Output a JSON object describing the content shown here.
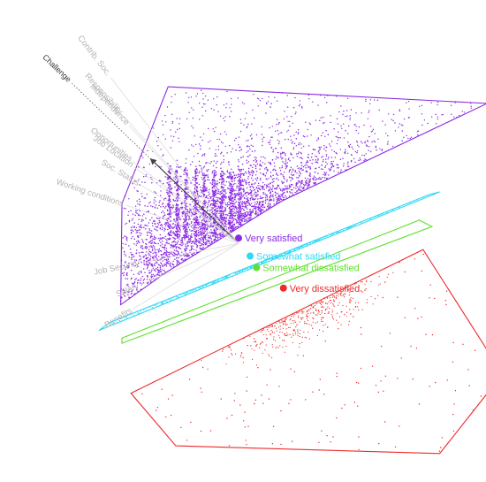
{
  "chart_data": {
    "type": "scatter",
    "title": "",
    "xlabel": "",
    "ylabel": "",
    "grid": false,
    "legend": "none",
    "variables": [
      {
        "name": "Challenge",
        "primary": true,
        "dir": [
          -0.72,
          -0.69
        ],
        "len": 0.95
      },
      {
        "name": "Contrib. Soc.",
        "primary": false,
        "dir": [
          -0.61,
          -0.79
        ],
        "len": 0.86
      },
      {
        "name": "Responsibility",
        "primary": false,
        "dir": [
          -0.67,
          -0.74
        ],
        "len": 0.71
      },
      {
        "name": "Independence",
        "primary": false,
        "dir": [
          -0.68,
          -0.73
        ],
        "len": 0.66
      },
      {
        "name": "Opportunities",
        "primary": false,
        "dir": [
          -0.79,
          -0.61
        ],
        "len": 0.55
      },
      {
        "name": "Job Location",
        "primary": false,
        "dir": [
          -0.81,
          -0.59
        ],
        "len": 0.53
      },
      {
        "name": "Soc. Status",
        "primary": false,
        "dir": [
          -0.86,
          -0.51
        ],
        "len": 0.47
      },
      {
        "name": "Working conditions",
        "primary": false,
        "dir": [
          -0.95,
          -0.32
        ],
        "len": 0.49
      },
      {
        "name": "Job Security",
        "primary": false,
        "dir": [
          -0.98,
          0.2
        ],
        "len": 0.41
      },
      {
        "name": "Salary",
        "primary": false,
        "dir": [
          -0.92,
          0.39
        ],
        "len": 0.44
      },
      {
        "name": "Benefits",
        "primary": false,
        "dir": [
          -0.85,
          0.53
        ],
        "len": 0.51
      }
    ],
    "series": [
      {
        "name": "Very satisfied",
        "color": "#8b2be2",
        "centroid": [
          0.0,
          -0.04
        ],
        "hull": [
          [
            -0.91,
            -0.31
          ],
          [
            -0.55,
            -1.22
          ],
          [
            1.94,
            -1.09
          ],
          [
            0.34,
            -0.33
          ],
          [
            -0.57,
            0.23
          ],
          [
            -0.92,
            0.48
          ]
        ]
      },
      {
        "name": "Somewhat satisfied",
        "color": "#2fd8f4",
        "centroid": [
          0.09,
          0.1
        ],
        "hull": [
          [
            -1.09,
            0.68
          ],
          [
            1.57,
            -0.4
          ],
          [
            1.49,
            -0.38
          ],
          [
            -1.01,
            0.62
          ]
        ]
      },
      {
        "name": "Somewhat dissatisfied",
        "color": "#5fe02f",
        "centroid": [
          0.14,
          0.19
        ],
        "hull": [
          [
            -0.91,
            0.74
          ],
          [
            1.41,
            -0.18
          ],
          [
            1.51,
            -0.13
          ],
          [
            -0.91,
            0.78
          ]
        ]
      },
      {
        "name": "Very dissatisfied",
        "color": "#ee2a2a",
        "centroid": [
          0.35,
          0.35
        ],
        "hull": [
          [
            -0.84,
            1.17
          ],
          [
            1.44,
            0.05
          ],
          [
            2.06,
            1.02
          ],
          [
            1.57,
            1.64
          ],
          [
            -0.49,
            1.58
          ]
        ]
      }
    ]
  }
}
